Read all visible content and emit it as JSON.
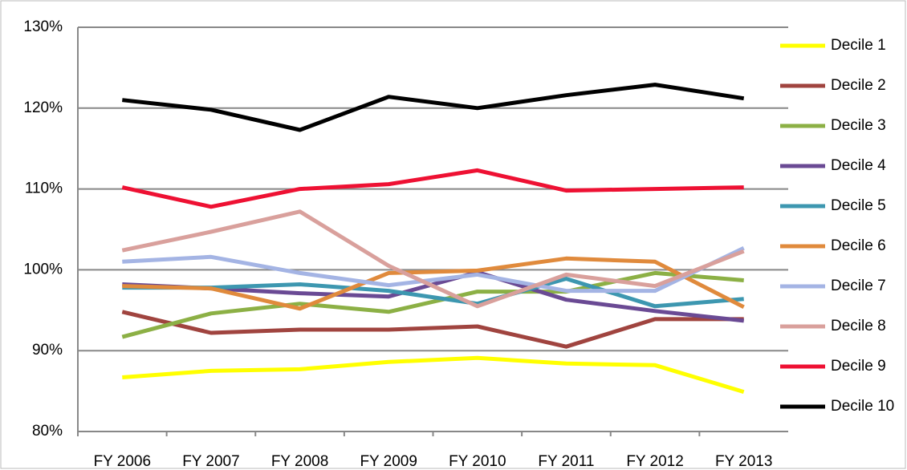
{
  "chart_data": {
    "type": "line",
    "categories": [
      "FY 2006",
      "FY 2007",
      "FY 2008",
      "FY 2009",
      "FY 2010",
      "FY 2011",
      "FY 2012",
      "FY 2013"
    ],
    "ylim": [
      80,
      130
    ],
    "yticks": [
      {
        "value": 80,
        "label": "80%"
      },
      {
        "value": 90,
        "label": "90%"
      },
      {
        "value": 100,
        "label": "100%"
      },
      {
        "value": 110,
        "label": "110%"
      },
      {
        "value": 120,
        "label": "120%"
      },
      {
        "value": 130,
        "label": "130%"
      }
    ],
    "grid": true,
    "legend": "right",
    "series": [
      {
        "name": "Decile 1",
        "color": "#ffff00",
        "values": [
          86.7,
          87.5,
          87.7,
          88.6,
          89.1,
          88.4,
          88.2,
          84.9
        ]
      },
      {
        "name": "Decile 2",
        "color": "#a0443f",
        "values": [
          94.8,
          92.2,
          92.6,
          92.6,
          93.0,
          90.5,
          93.9,
          93.9
        ]
      },
      {
        "name": "Decile 3",
        "color": "#8cb045",
        "values": [
          91.7,
          94.6,
          95.8,
          94.8,
          97.3,
          97.3,
          99.6,
          98.7
        ]
      },
      {
        "name": "Decile 4",
        "color": "#6a4a94",
        "values": [
          98.2,
          97.7,
          97.1,
          96.7,
          99.7,
          96.3,
          94.9,
          93.7
        ]
      },
      {
        "name": "Decile 5",
        "color": "#3d97b0",
        "values": [
          97.8,
          97.8,
          98.2,
          97.4,
          95.8,
          98.9,
          95.5,
          96.4
        ]
      },
      {
        "name": "Decile 6",
        "color": "#e08a3c",
        "values": [
          98.0,
          97.7,
          95.2,
          99.6,
          99.9,
          101.4,
          101.0,
          95.4
        ]
      },
      {
        "name": "Decile 7",
        "color": "#a4b4e4",
        "values": [
          101.0,
          101.6,
          99.6,
          98.1,
          99.4,
          97.4,
          97.4,
          102.7
        ]
      },
      {
        "name": "Decile 8",
        "color": "#d9a09c",
        "values": [
          102.4,
          104.7,
          107.2,
          100.5,
          95.5,
          99.4,
          98.0,
          102.3
        ]
      },
      {
        "name": "Decile 9",
        "color": "#ee1133",
        "values": [
          110.2,
          107.8,
          110.0,
          110.6,
          112.3,
          109.8,
          110.0,
          110.2
        ]
      },
      {
        "name": "Decile 10",
        "color": "#000000",
        "values": [
          121.0,
          119.8,
          117.3,
          121.4,
          120.0,
          121.6,
          122.9,
          121.2
        ]
      }
    ]
  }
}
